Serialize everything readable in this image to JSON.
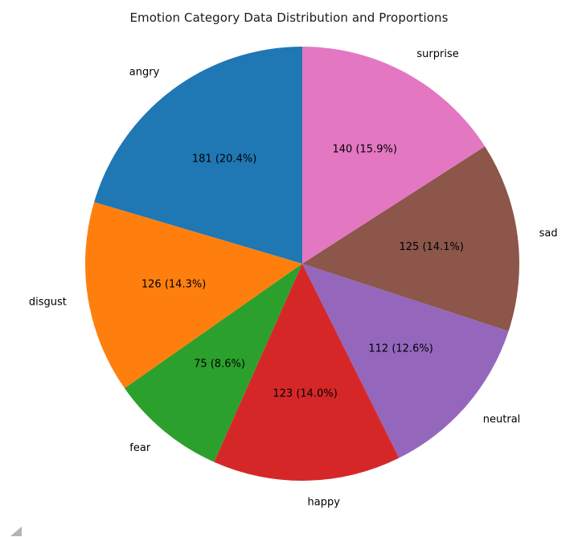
{
  "figure": {
    "background": "#ffffff",
    "resize_grip_color": "#b4b4b4",
    "text_color": "#000000"
  },
  "chart_data": {
    "type": "pie",
    "title": "Emotion Category Data Distribution and Proportions",
    "legend": "none",
    "start_angle": 90,
    "direction": "counterclockwise",
    "label_distance": 1.1,
    "pct_distance": 0.6,
    "categories": [
      "angry",
      "disgust",
      "fear",
      "happy",
      "neutral",
      "sad",
      "surprise"
    ],
    "values": [
      181,
      126,
      75,
      123,
      112,
      125,
      140
    ],
    "percentages": [
      20.4,
      14.3,
      8.6,
      14.0,
      12.6,
      14.1,
      15.9
    ],
    "autopct_labels": [
      "181 (20.4%)",
      "126 (14.3%)",
      "75 (8.6%)",
      "123 (14.0%)",
      "112 (12.6%)",
      "125 (14.1%)",
      "140 (15.9%)"
    ],
    "colors": [
      "#1f77b4",
      "#ff7f0e",
      "#2ca02c",
      "#d62728",
      "#9467bd",
      "#8c564b",
      "#e377c2"
    ]
  }
}
